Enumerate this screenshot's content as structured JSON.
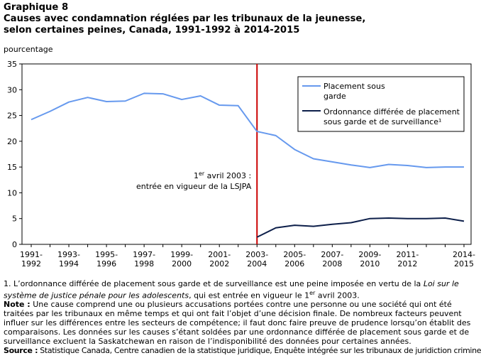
{
  "header": {
    "graph_label": "Graphique 8",
    "title_line1": "Causes avec condamnation réglées par les tribunaux de la jeunesse,",
    "title_line2": "selon certaines peines, Canada, 1991-1992 à 2014-2015"
  },
  "chart_data": {
    "type": "line",
    "ylabel": "pourcentage",
    "ylim": [
      0,
      35
    ],
    "yticks": [
      0,
      5,
      10,
      15,
      20,
      25,
      30,
      35
    ],
    "grid": false,
    "legend_position": "top-right",
    "categories": [
      "1991-1992",
      "1992-1993",
      "1993-1994",
      "1994-1995",
      "1995-1996",
      "1996-1997",
      "1997-1998",
      "1998-1999",
      "1999-2000",
      "2000-2001",
      "2001-2002",
      "2002-2003",
      "2003-2004",
      "2004-2005",
      "2005-2006",
      "2006-2007",
      "2007-2008",
      "2008-2009",
      "2009-2010",
      "2010-2011",
      "2011-2012",
      "2012-2013",
      "2013-2014",
      "2014-2015"
    ],
    "x_tick_labels": [
      {
        "top": "1991-",
        "bottom": "1992"
      },
      {
        "top": "1993-",
        "bottom": "1994"
      },
      {
        "top": "1995-",
        "bottom": "1996"
      },
      {
        "top": "1997-",
        "bottom": "1998"
      },
      {
        "top": "1999-",
        "bottom": "2000"
      },
      {
        "top": "2001-",
        "bottom": "2002"
      },
      {
        "top": "2003-",
        "bottom": "2004"
      },
      {
        "top": "2005-",
        "bottom": "2006"
      },
      {
        "top": "2007-",
        "bottom": "2008"
      },
      {
        "top": "2009-",
        "bottom": "2010"
      },
      {
        "top": "2011-",
        "bottom": "2012"
      },
      {
        "top": "2014-",
        "bottom": "2015"
      }
    ],
    "series": [
      {
        "name": "Placement sous garde",
        "color": "#6699ee",
        "values": [
          24.2,
          25.8,
          27.6,
          28.5,
          27.7,
          27.8,
          29.3,
          29.2,
          28.1,
          28.8,
          27.0,
          26.9,
          21.9,
          21.1,
          18.4,
          16.6,
          16.0,
          15.4,
          14.9,
          15.5,
          15.3,
          14.9,
          15.0,
          15.0
        ]
      },
      {
        "name": "Ordonnance différée de placement sous garde et de surveillance¹",
        "color": "#0d1f4a",
        "values": [
          null,
          null,
          null,
          null,
          null,
          null,
          null,
          null,
          null,
          null,
          null,
          null,
          1.4,
          3.2,
          3.7,
          3.5,
          3.9,
          4.2,
          5.0,
          5.1,
          5.0,
          5.0,
          5.1,
          4.5
        ]
      }
    ],
    "legend_labels": [
      {
        "line1": "Placement sous",
        "line2": "garde"
      },
      {
        "line1": "Ordonnance différée de placement",
        "line2": "sous garde et de surveillance¹"
      }
    ],
    "annotation": {
      "category": "2003-2004",
      "line1_pre": "1",
      "line1_sup": "er",
      "line1_post": " avril 2003 :",
      "line2": "entrée en vigueur de la LSJPA",
      "line_color": "#cc0000"
    }
  },
  "notes": {
    "note1_main": "1. L’ordonnance différée de placement sous garde et de surveillance est une peine imposée en vertu de la ",
    "note1_italic": "Loi sur le système de justice pénale pour les adolescents",
    "note1_end_pre": ", qui est entrée en vigueur le 1",
    "note1_end_sup": "er",
    "note1_end_post": " avril 2003.",
    "note_label": "Note :",
    "note_text": " Une cause comprend une ou plusieurs accusations portées contre une personne ou une société qui ont été traitées par les tribunaux en même temps et qui ont fait l’objet d’une décision finale. De nombreux facteurs peuvent influer sur les différences entre les secteurs de compétence; il faut donc faire preuve de prudence lorsqu’on établit des comparaisons. Les données sur les causes s’étant soldées par une ordonnance différée de placement sous garde et de surveillance excluent la Saskatchewan en raison de l’indisponibilité des données pour certaines années.",
    "source_label": "Source :",
    "source_text": " Statistique Canada, Centre canadien de la statistique juridique, Enquête intégrée sur les tribunaux de juridiction criminelle."
  }
}
